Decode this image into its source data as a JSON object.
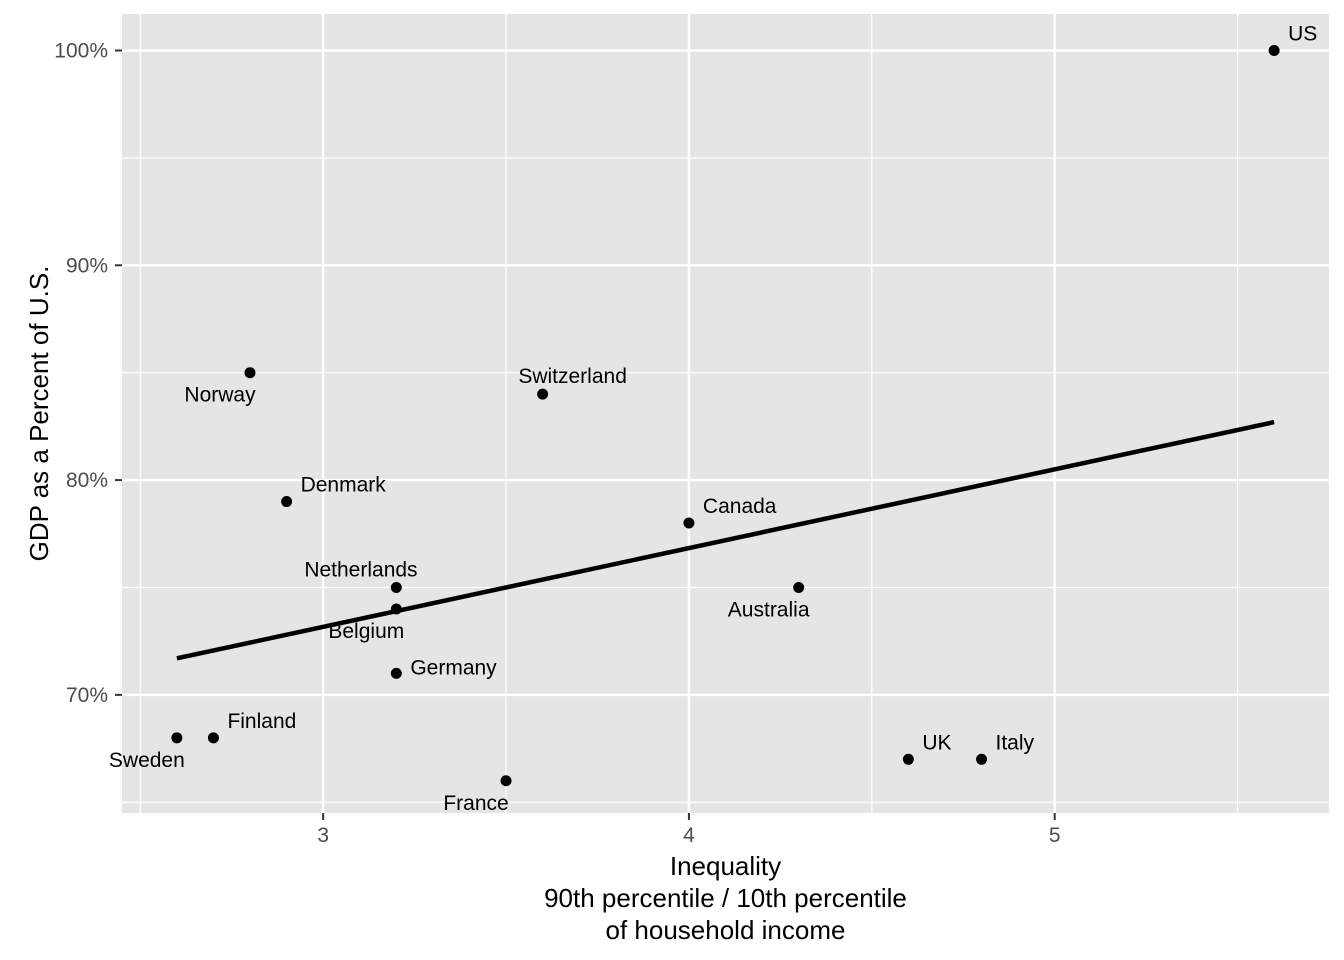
{
  "chart_data": {
    "type": "scatter",
    "title": "",
    "xlabel_lines": [
      "Inequality",
      "90th percentile / 10th percentile",
      "of household income"
    ],
    "ylabel": "GDP as a Percent of U.S.",
    "xlim": [
      2.45,
      5.75
    ],
    "ylim": [
      64.5,
      101.7
    ],
    "x_ticks": [
      3,
      4,
      5
    ],
    "x_tick_labels": [
      "3",
      "4",
      "5"
    ],
    "y_ticks": [
      70,
      80,
      90,
      100
    ],
    "y_tick_labels": [
      "70%",
      "80%",
      "90%",
      "100%"
    ],
    "grid": true,
    "legend": "none",
    "colors": {
      "panel": "#e5e5e5",
      "grid": "#ffffff",
      "points": "#000000",
      "tick_text": "#4d4d4d"
    },
    "points": [
      {
        "label": "US",
        "x": 5.6,
        "y": 100,
        "label_pos": "above-right"
      },
      {
        "label": "Norway",
        "x": 2.8,
        "y": 85,
        "label_pos": "below-left"
      },
      {
        "label": "Switzerland",
        "x": 3.6,
        "y": 84,
        "label_pos": "above"
      },
      {
        "label": "Denmark",
        "x": 2.9,
        "y": 79,
        "label_pos": "above-right"
      },
      {
        "label": "Canada",
        "x": 4.0,
        "y": 78,
        "label_pos": "above-right"
      },
      {
        "label": "Netherlands",
        "x": 3.2,
        "y": 75,
        "label_pos": "above-left"
      },
      {
        "label": "Australia",
        "x": 4.3,
        "y": 75,
        "label_pos": "below-left"
      },
      {
        "label": "Belgium",
        "x": 3.2,
        "y": 74,
        "label_pos": "below-left"
      },
      {
        "label": "Germany",
        "x": 3.2,
        "y": 71,
        "label_pos": "right"
      },
      {
        "label": "Finland",
        "x": 2.7,
        "y": 68,
        "label_pos": "above-right"
      },
      {
        "label": "Sweden",
        "x": 2.6,
        "y": 68,
        "label_pos": "below-left"
      },
      {
        "label": "UK",
        "x": 4.6,
        "y": 67,
        "label_pos": "above-right"
      },
      {
        "label": "Italy",
        "x": 4.8,
        "y": 67,
        "label_pos": "above-right"
      },
      {
        "label": "France",
        "x": 3.5,
        "y": 66,
        "label_pos": "below-left"
      }
    ],
    "trend_line": {
      "x": [
        2.6,
        5.6
      ],
      "y": [
        71.7,
        82.7
      ]
    }
  }
}
